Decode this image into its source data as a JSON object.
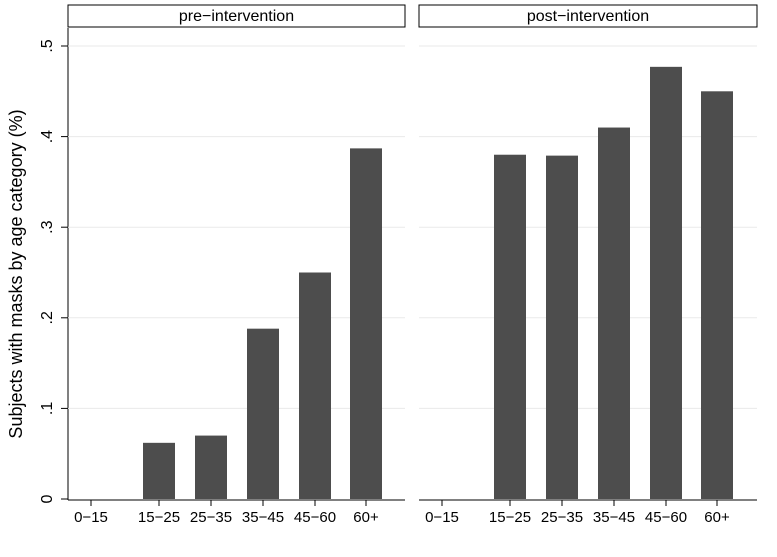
{
  "chart_data": {
    "type": "bar",
    "ylabel": "Subjects with masks by age category (%)",
    "ylim": [
      0,
      0.5
    ],
    "yticks": [
      0,
      0.1,
      0.2,
      0.3,
      0.4,
      0.5
    ],
    "ytick_labels": [
      "0",
      ".1",
      ".2",
      ".3",
      ".4",
      ".5"
    ],
    "categories": [
      "0−15",
      "15−25",
      "25−35",
      "35−45",
      "45−60",
      "60+"
    ],
    "grid": true,
    "bar_color": "#4d4d4d",
    "panels": [
      {
        "title": "pre−intervention",
        "values": [
          0,
          0.062,
          0.07,
          0.188,
          0.25,
          0.387
        ]
      },
      {
        "title": "post−intervention",
        "values": [
          0,
          0.38,
          0.379,
          0.41,
          0.477,
          0.45
        ]
      }
    ]
  }
}
